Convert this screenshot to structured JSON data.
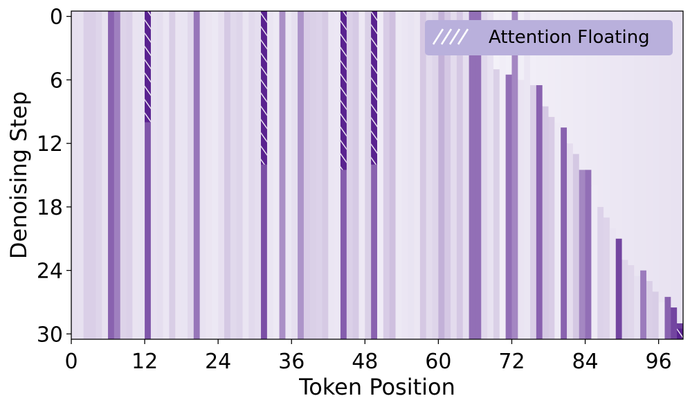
{
  "chart_data": {
    "type": "heatmap",
    "title": "",
    "xlabel": "Token Position",
    "ylabel": "Denoising Step",
    "x_range": [
      0,
      100
    ],
    "y_range": [
      0,
      31
    ],
    "x_ticks": [
      0,
      12,
      24,
      36,
      48,
      60,
      72,
      84,
      96
    ],
    "y_ticks": [
      0,
      6,
      12,
      18,
      24,
      30
    ],
    "color_map": "Purples",
    "hatch_color": "#ffffff",
    "legend": {
      "label": "Attention Floating",
      "position": "top-right",
      "color": "#b9b0dc"
    },
    "columns": [
      {
        "x": 6,
        "intensity": 0.6,
        "end_step": 31
      },
      {
        "x": 7,
        "intensity": 0.48,
        "end_step": 31
      },
      {
        "x": 12,
        "intensity": 0.65,
        "end_step": 31
      },
      {
        "x": 20,
        "intensity": 0.52,
        "end_step": 31
      },
      {
        "x": 31,
        "intensity": 0.68,
        "end_step": 31
      },
      {
        "x": 34,
        "intensity": 0.42,
        "end_step": 31
      },
      {
        "x": 37,
        "intensity": 0.4,
        "end_step": 31
      },
      {
        "x": 44,
        "intensity": 0.62,
        "end_step": 31
      },
      {
        "x": 49,
        "intensity": 0.6,
        "end_step": 31
      },
      {
        "x": 52,
        "intensity": 0.22,
        "end_step": 31
      },
      {
        "x": 60,
        "intensity": 0.28,
        "end_step": 31
      },
      {
        "x": 65,
        "intensity": 0.55,
        "end_step": 31
      },
      {
        "x": 66,
        "intensity": 0.55,
        "end_step": 31
      },
      {
        "x": 71,
        "intensity": 0.55,
        "end_step": 31
      },
      {
        "x": 72,
        "intensity": 0.45,
        "end_step": 31
      },
      {
        "x": 76,
        "intensity": 0.6,
        "end_step": 31
      },
      {
        "x": 80,
        "intensity": 0.6,
        "end_step": 31
      },
      {
        "x": 83,
        "intensity": 0.45,
        "end_step": 31
      },
      {
        "x": 84,
        "intensity": 0.55,
        "end_step": 31
      },
      {
        "x": 89,
        "intensity": 0.72,
        "end_step": 31
      },
      {
        "x": 93,
        "intensity": 0.5,
        "end_step": 31
      },
      {
        "x": 97,
        "intensity": 0.6,
        "end_step": 30
      },
      {
        "x": 98,
        "intensity": 0.72,
        "end_step": 31
      },
      {
        "x": 99,
        "intensity": 0.75,
        "end_step": 31
      }
    ],
    "floating_regions": [
      {
        "x": 12,
        "step_start": 0,
        "step_end": 10.5
      },
      {
        "x": 31,
        "step_start": 0,
        "step_end": 14.5
      },
      {
        "x": 44,
        "step_start": 0,
        "step_end": 15
      },
      {
        "x": 49,
        "step_start": 0,
        "step_end": 14.5
      },
      {
        "x": 99,
        "step_start": 30,
        "step_end": 31
      }
    ],
    "token_end_step": [
      {
        "x": 69,
        "step": 5.5
      },
      {
        "x": 71,
        "step": 6
      },
      {
        "x": 73,
        "step": 6.5
      },
      {
        "x": 75,
        "step": 7
      },
      {
        "x": 76,
        "step": 7
      },
      {
        "x": 77,
        "step": 9
      },
      {
        "x": 78,
        "step": 10
      },
      {
        "x": 79,
        "step": 10.5
      },
      {
        "x": 80,
        "step": 11
      },
      {
        "x": 81,
        "step": 12.5
      },
      {
        "x": 82,
        "step": 13.5
      },
      {
        "x": 83,
        "step": 15
      },
      {
        "x": 84,
        "step": 15
      },
      {
        "x": 85,
        "step": 16.5
      },
      {
        "x": 86,
        "step": 18.5
      },
      {
        "x": 87,
        "step": 19.5
      },
      {
        "x": 88,
        "step": 20.5
      },
      {
        "x": 89,
        "step": 21.5
      },
      {
        "x": 90,
        "step": 23.5
      },
      {
        "x": 91,
        "step": 24
      },
      {
        "x": 92,
        "step": 25
      },
      {
        "x": 93,
        "step": 24.5
      },
      {
        "x": 94,
        "step": 25.5
      },
      {
        "x": 95,
        "step": 26.5
      },
      {
        "x": 96,
        "step": 27.5
      },
      {
        "x": 97,
        "step": 27
      },
      {
        "x": 98,
        "step": 28
      },
      {
        "x": 99,
        "step": 29.5
      }
    ]
  }
}
